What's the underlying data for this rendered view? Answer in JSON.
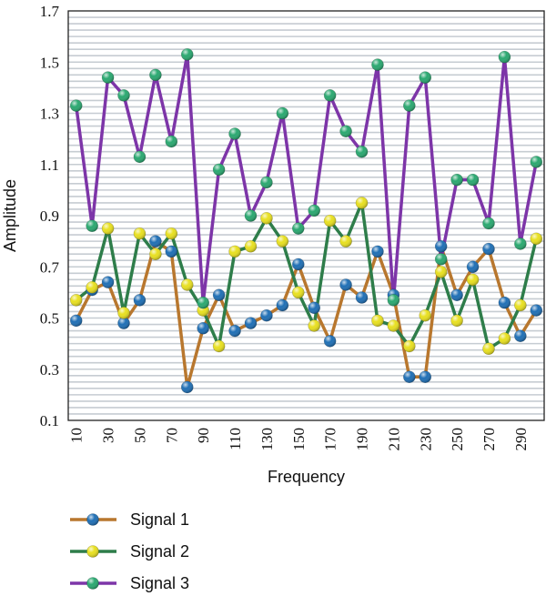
{
  "chart_data": {
    "type": "line",
    "title": "",
    "xlabel": "Frequency",
    "ylabel": "Amplitude",
    "xlim": [
      5,
      305
    ],
    "ylim": [
      0.1,
      1.7
    ],
    "grid": true,
    "legend_position": "bottom-left",
    "x": [
      10,
      20,
      30,
      40,
      50,
      60,
      70,
      80,
      90,
      100,
      110,
      120,
      130,
      140,
      150,
      160,
      170,
      180,
      190,
      200,
      210,
      220,
      230,
      240,
      250,
      260,
      270,
      280,
      290,
      300
    ],
    "x_tick_labels": [
      "10",
      "30",
      "50",
      "70",
      "90",
      "110",
      "130",
      "150",
      "170",
      "190",
      "210",
      "230",
      "250",
      "270",
      "290"
    ],
    "y_tick_labels": [
      "0.1",
      "0.3",
      "0.5",
      "0.7",
      "0.9",
      "1.1",
      "1.3",
      "1.5",
      "1.7"
    ],
    "series": [
      {
        "name": "Signal 1",
        "line_color": "#b8772e",
        "marker_color": "#1f6fb5",
        "values": [
          0.49,
          0.61,
          0.64,
          0.48,
          0.57,
          0.8,
          0.76,
          0.23,
          0.46,
          0.59,
          0.45,
          0.48,
          0.51,
          0.55,
          0.71,
          0.54,
          0.41,
          0.63,
          0.58,
          0.76,
          0.59,
          0.27,
          0.27,
          0.78,
          0.59,
          0.7,
          0.77,
          0.56,
          0.43,
          0.53
        ]
      },
      {
        "name": "Signal 2",
        "line_color": "#2e7d4a",
        "marker_color": "#e8e020",
        "values": [
          0.57,
          0.62,
          0.85,
          0.52,
          0.83,
          0.75,
          0.83,
          0.63,
          0.53,
          0.39,
          0.76,
          0.78,
          0.89,
          0.8,
          0.6,
          0.47,
          0.88,
          0.8,
          0.95,
          0.49,
          0.47,
          0.39,
          0.51,
          0.68,
          0.49,
          0.65,
          0.38,
          0.42,
          0.55,
          0.81
        ]
      },
      {
        "name": "Signal 3",
        "line_color": "#7d35a8",
        "marker_color": "#2aa870",
        "values": [
          1.33,
          0.86,
          1.44,
          1.37,
          1.13,
          1.45,
          1.19,
          1.53,
          0.56,
          1.08,
          1.22,
          0.9,
          1.03,
          1.3,
          0.85,
          0.92,
          1.37,
          1.23,
          1.15,
          1.49,
          0.57,
          1.33,
          1.44,
          0.73,
          1.04,
          1.04,
          0.87,
          1.52,
          0.79,
          1.11
        ]
      }
    ]
  }
}
